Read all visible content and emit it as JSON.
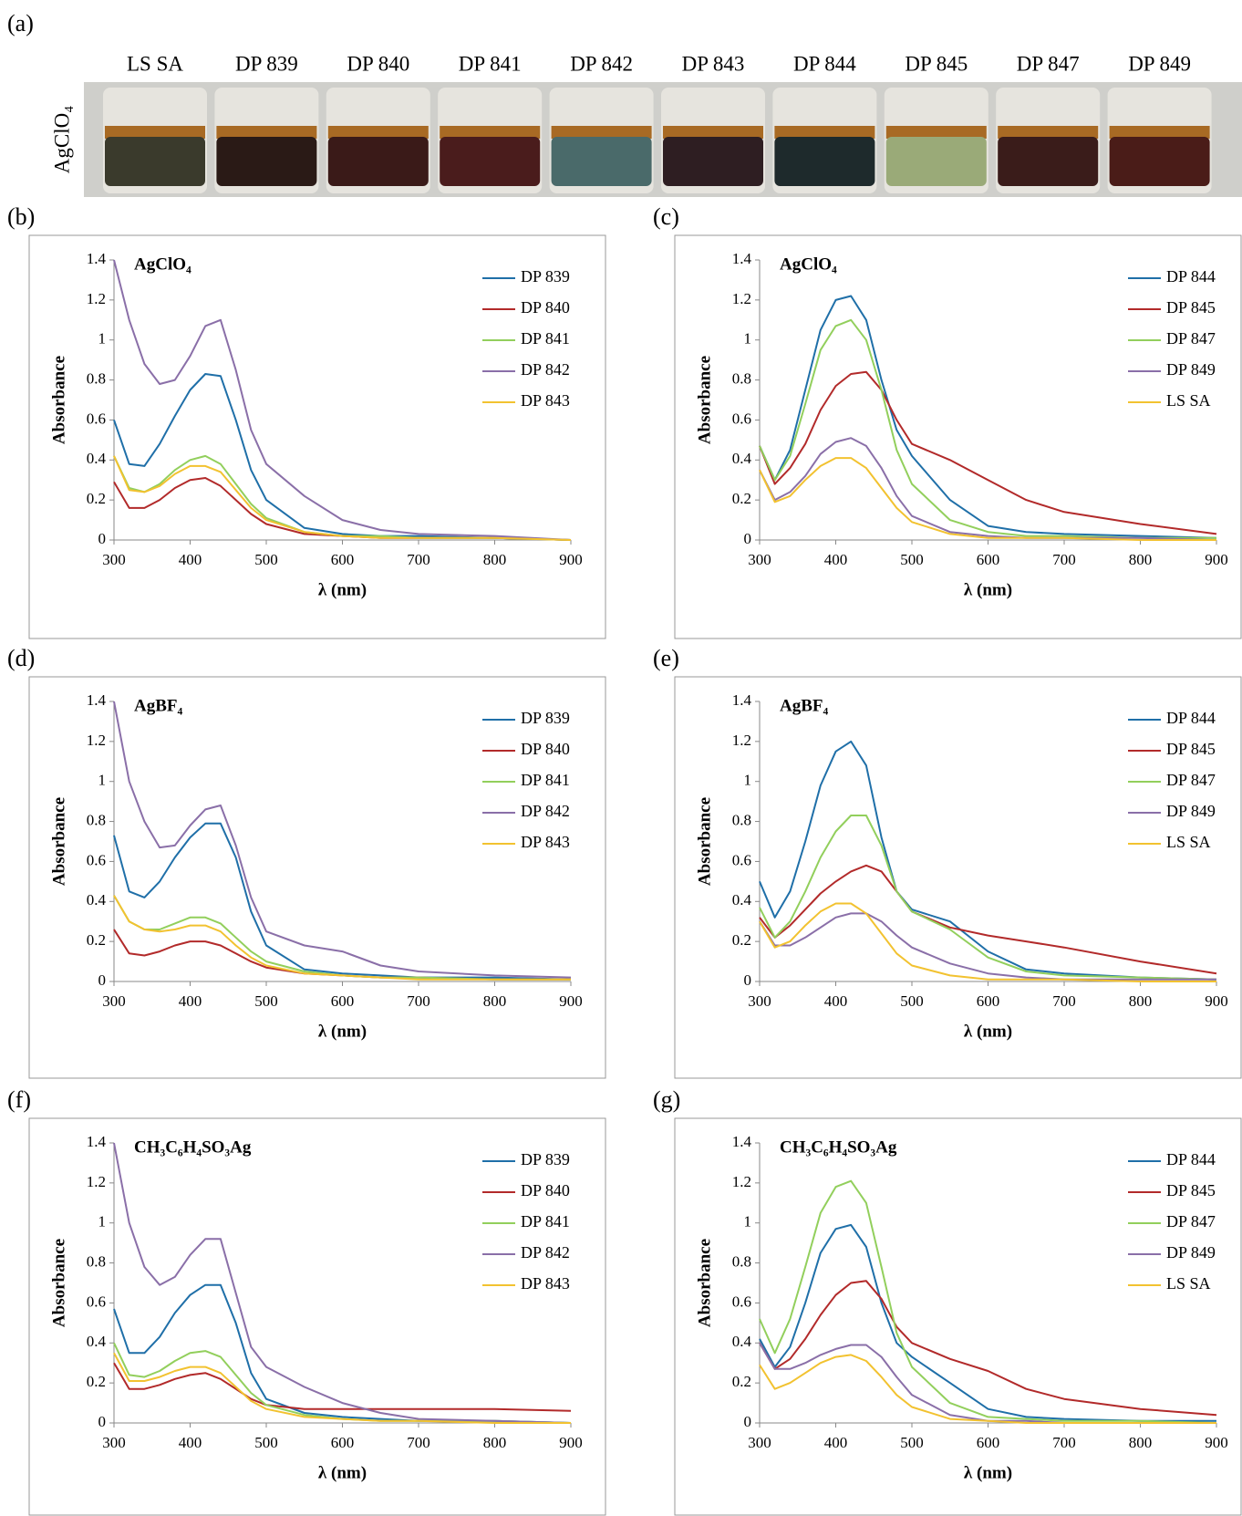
{
  "photo": {
    "label": "(a)",
    "reagent": "AgClO₄",
    "samples": [
      "LS SA",
      "DP 839",
      "DP 840",
      "DP 841",
      "DP 842",
      "DP 843",
      "DP 844",
      "DP 845",
      "DP 847",
      "DP 849"
    ]
  },
  "chart_data": [
    {
      "type": "line",
      "label": "(b)",
      "title": "AgClO₄",
      "xlabel": "λ  (nm)",
      "ylabel": "Absorbance",
      "x": [
        300,
        320,
        340,
        360,
        380,
        400,
        420,
        440,
        460,
        480,
        500,
        550,
        600,
        650,
        700,
        800,
        900
      ],
      "xlim": [
        300,
        900
      ],
      "ylim": [
        0,
        1.4
      ],
      "xticks": [
        300,
        400,
        500,
        600,
        700,
        800,
        900
      ],
      "yticks": [
        0,
        0.2,
        0.4,
        0.6,
        0.8,
        1,
        1.2,
        1.4
      ],
      "series": [
        {
          "name": "DP 839",
          "color": "#1f6fa8",
          "values": [
            0.6,
            0.38,
            0.37,
            0.48,
            0.62,
            0.75,
            0.83,
            0.82,
            0.6,
            0.35,
            0.2,
            0.06,
            0.03,
            0.02,
            0.02,
            0.01,
            0
          ]
        },
        {
          "name": "DP 840",
          "color": "#b22a2a",
          "values": [
            0.29,
            0.16,
            0.16,
            0.2,
            0.26,
            0.3,
            0.31,
            0.27,
            0.2,
            0.13,
            0.08,
            0.03,
            0.02,
            0.01,
            0.01,
            0.01,
            0
          ]
        },
        {
          "name": "DP 841",
          "color": "#92cf5c",
          "values": [
            0.42,
            0.26,
            0.24,
            0.28,
            0.35,
            0.4,
            0.42,
            0.38,
            0.28,
            0.18,
            0.11,
            0.04,
            0.02,
            0.02,
            0.01,
            0.01,
            0
          ]
        },
        {
          "name": "DP 842",
          "color": "#8a6fa8",
          "values": [
            1.4,
            1.1,
            0.88,
            0.78,
            0.8,
            0.92,
            1.07,
            1.1,
            0.85,
            0.55,
            0.38,
            0.22,
            0.1,
            0.05,
            0.03,
            0.02,
            0
          ]
        },
        {
          "name": "DP 843",
          "color": "#f2c230",
          "values": [
            0.42,
            0.25,
            0.24,
            0.27,
            0.33,
            0.37,
            0.37,
            0.34,
            0.25,
            0.16,
            0.1,
            0.04,
            0.02,
            0.01,
            0.01,
            0.01,
            0
          ]
        }
      ]
    },
    {
      "type": "line",
      "label": "(c)",
      "title": "AgClO₄",
      "xlabel": "λ  (nm)",
      "ylabel": "Absorbance",
      "x": [
        300,
        320,
        340,
        360,
        380,
        400,
        420,
        440,
        460,
        480,
        500,
        550,
        600,
        650,
        700,
        800,
        900
      ],
      "xlim": [
        300,
        900
      ],
      "ylim": [
        0,
        1.4
      ],
      "xticks": [
        300,
        400,
        500,
        600,
        700,
        800,
        900
      ],
      "yticks": [
        0,
        0.2,
        0.4,
        0.6,
        0.8,
        1,
        1.2,
        1.4
      ],
      "series": [
        {
          "name": "DP 844",
          "color": "#1f6fa8",
          "values": [
            0.47,
            0.3,
            0.45,
            0.75,
            1.05,
            1.2,
            1.22,
            1.1,
            0.8,
            0.55,
            0.42,
            0.2,
            0.07,
            0.04,
            0.03,
            0.02,
            0.01
          ]
        },
        {
          "name": "DP 845",
          "color": "#b22a2a",
          "values": [
            0.47,
            0.28,
            0.36,
            0.48,
            0.65,
            0.77,
            0.83,
            0.84,
            0.75,
            0.6,
            0.48,
            0.4,
            0.3,
            0.2,
            0.14,
            0.08,
            0.03
          ]
        },
        {
          "name": "DP 847",
          "color": "#92cf5c",
          "values": [
            0.47,
            0.3,
            0.42,
            0.68,
            0.95,
            1.07,
            1.1,
            1.0,
            0.75,
            0.45,
            0.28,
            0.1,
            0.04,
            0.02,
            0.02,
            0.01,
            0.01
          ]
        },
        {
          "name": "DP 849",
          "color": "#8a6fa8",
          "values": [
            0.35,
            0.2,
            0.24,
            0.32,
            0.43,
            0.49,
            0.51,
            0.47,
            0.36,
            0.22,
            0.12,
            0.04,
            0.02,
            0.01,
            0.01,
            0.01,
            0
          ]
        },
        {
          "name": "LS SA",
          "color": "#f2c230",
          "values": [
            0.35,
            0.19,
            0.22,
            0.3,
            0.37,
            0.41,
            0.41,
            0.36,
            0.26,
            0.16,
            0.09,
            0.03,
            0.01,
            0.01,
            0.01,
            0,
            0
          ]
        }
      ]
    },
    {
      "type": "line",
      "label": "(d)",
      "title": "AgBF₄",
      "xlabel": "λ  (nm)",
      "ylabel": "Absorbance",
      "x": [
        300,
        320,
        340,
        360,
        380,
        400,
        420,
        440,
        460,
        480,
        500,
        550,
        600,
        650,
        700,
        800,
        900
      ],
      "xlim": [
        300,
        900
      ],
      "ylim": [
        0,
        1.4
      ],
      "xticks": [
        300,
        400,
        500,
        600,
        700,
        800,
        900
      ],
      "yticks": [
        0,
        0.2,
        0.4,
        0.6,
        0.8,
        1,
        1.2,
        1.4
      ],
      "series": [
        {
          "name": "DP 839",
          "color": "#1f6fa8",
          "values": [
            0.73,
            0.45,
            0.42,
            0.5,
            0.62,
            0.72,
            0.79,
            0.79,
            0.62,
            0.35,
            0.18,
            0.06,
            0.04,
            0.03,
            0.02,
            0.02,
            0.01
          ]
        },
        {
          "name": "DP 840",
          "color": "#b22a2a",
          "values": [
            0.26,
            0.14,
            0.13,
            0.15,
            0.18,
            0.2,
            0.2,
            0.18,
            0.14,
            0.1,
            0.07,
            0.04,
            0.03,
            0.02,
            0.02,
            0.01,
            0.01
          ]
        },
        {
          "name": "DP 841",
          "color": "#92cf5c",
          "values": [
            0.43,
            0.3,
            0.26,
            0.26,
            0.29,
            0.32,
            0.32,
            0.29,
            0.22,
            0.15,
            0.1,
            0.05,
            0.03,
            0.02,
            0.02,
            0.01,
            0.01
          ]
        },
        {
          "name": "DP 842",
          "color": "#8a6fa8",
          "values": [
            1.4,
            1.0,
            0.8,
            0.67,
            0.68,
            0.78,
            0.86,
            0.88,
            0.68,
            0.42,
            0.25,
            0.18,
            0.15,
            0.08,
            0.05,
            0.03,
            0.02
          ]
        },
        {
          "name": "DP 843",
          "color": "#f2c230",
          "values": [
            0.43,
            0.3,
            0.26,
            0.25,
            0.26,
            0.28,
            0.28,
            0.25,
            0.18,
            0.12,
            0.08,
            0.04,
            0.03,
            0.02,
            0.01,
            0.01,
            0.01
          ]
        }
      ]
    },
    {
      "type": "line",
      "label": "(e)",
      "title": "AgBF₄",
      "xlabel": "λ  (nm)",
      "ylabel": "Absorbance",
      "x": [
        300,
        320,
        340,
        360,
        380,
        400,
        420,
        440,
        460,
        480,
        500,
        550,
        600,
        650,
        700,
        800,
        900
      ],
      "xlim": [
        300,
        900
      ],
      "ylim": [
        0,
        1.4
      ],
      "xticks": [
        300,
        400,
        500,
        600,
        700,
        800,
        900
      ],
      "yticks": [
        0,
        0.2,
        0.4,
        0.6,
        0.8,
        1,
        1.2,
        1.4
      ],
      "series": [
        {
          "name": "DP 844",
          "color": "#1f6fa8",
          "values": [
            0.5,
            0.32,
            0.45,
            0.7,
            0.98,
            1.15,
            1.2,
            1.08,
            0.72,
            0.45,
            0.36,
            0.3,
            0.15,
            0.06,
            0.04,
            0.02,
            0.01
          ]
        },
        {
          "name": "DP 845",
          "color": "#b22a2a",
          "values": [
            0.32,
            0.22,
            0.28,
            0.36,
            0.44,
            0.5,
            0.55,
            0.58,
            0.55,
            0.45,
            0.35,
            0.27,
            0.23,
            0.2,
            0.17,
            0.1,
            0.04
          ]
        },
        {
          "name": "DP 847",
          "color": "#92cf5c",
          "values": [
            0.37,
            0.22,
            0.3,
            0.45,
            0.62,
            0.75,
            0.83,
            0.83,
            0.68,
            0.45,
            0.35,
            0.26,
            0.12,
            0.05,
            0.03,
            0.02,
            0.01
          ]
        },
        {
          "name": "DP 849",
          "color": "#8a6fa8",
          "values": [
            0.3,
            0.18,
            0.18,
            0.22,
            0.27,
            0.32,
            0.34,
            0.34,
            0.3,
            0.23,
            0.17,
            0.09,
            0.04,
            0.02,
            0.01,
            0.01,
            0.01
          ]
        },
        {
          "name": "LS SA",
          "color": "#f2c230",
          "values": [
            0.3,
            0.17,
            0.2,
            0.28,
            0.35,
            0.39,
            0.39,
            0.34,
            0.24,
            0.14,
            0.08,
            0.03,
            0.01,
            0.01,
            0.01,
            0,
            0
          ]
        }
      ]
    },
    {
      "type": "line",
      "label": "(f)",
      "title": "CH₃C₆H₄SO₃Ag",
      "xlabel": "λ  (nm)",
      "ylabel": "Absorbance",
      "x": [
        300,
        320,
        340,
        360,
        380,
        400,
        420,
        440,
        460,
        480,
        500,
        550,
        600,
        650,
        700,
        800,
        900
      ],
      "xlim": [
        300,
        900
      ],
      "ylim": [
        0,
        1.4
      ],
      "xticks": [
        300,
        400,
        500,
        600,
        700,
        800,
        900
      ],
      "yticks": [
        0,
        0.2,
        0.4,
        0.6,
        0.8,
        1,
        1.2,
        1.4
      ],
      "series": [
        {
          "name": "DP 839",
          "color": "#1f6fa8",
          "values": [
            0.57,
            0.35,
            0.35,
            0.43,
            0.55,
            0.64,
            0.69,
            0.69,
            0.5,
            0.25,
            0.12,
            0.05,
            0.03,
            0.02,
            0.01,
            0.01,
            0
          ]
        },
        {
          "name": "DP 840",
          "color": "#b22a2a",
          "values": [
            0.3,
            0.17,
            0.17,
            0.19,
            0.22,
            0.24,
            0.25,
            0.22,
            0.17,
            0.12,
            0.09,
            0.07,
            0.07,
            0.07,
            0.07,
            0.07,
            0.06
          ]
        },
        {
          "name": "DP 841",
          "color": "#92cf5c",
          "values": [
            0.4,
            0.24,
            0.23,
            0.26,
            0.31,
            0.35,
            0.36,
            0.33,
            0.24,
            0.15,
            0.09,
            0.04,
            0.02,
            0.01,
            0.01,
            0.01,
            0
          ]
        },
        {
          "name": "DP 842",
          "color": "#8a6fa8",
          "values": [
            1.4,
            1.0,
            0.78,
            0.69,
            0.73,
            0.84,
            0.92,
            0.92,
            0.65,
            0.38,
            0.28,
            0.18,
            0.1,
            0.05,
            0.02,
            0.01,
            0
          ]
        },
        {
          "name": "DP 843",
          "color": "#f2c230",
          "values": [
            0.35,
            0.21,
            0.21,
            0.23,
            0.26,
            0.28,
            0.28,
            0.25,
            0.18,
            0.11,
            0.07,
            0.03,
            0.02,
            0.01,
            0.01,
            0,
            0
          ]
        }
      ]
    },
    {
      "type": "line",
      "label": "(g)",
      "title": "CH₃C₆H₄SO₃Ag",
      "xlabel": "λ  (nm)",
      "ylabel": "Absorbance",
      "x": [
        300,
        320,
        340,
        360,
        380,
        400,
        420,
        440,
        460,
        480,
        500,
        550,
        600,
        650,
        700,
        800,
        900
      ],
      "xlim": [
        300,
        900
      ],
      "ylim": [
        0,
        1.4
      ],
      "xticks": [
        300,
        400,
        500,
        600,
        700,
        800,
        900
      ],
      "yticks": [
        0,
        0.2,
        0.4,
        0.6,
        0.8,
        1,
        1.2,
        1.4
      ],
      "series": [
        {
          "name": "DP 844",
          "color": "#1f6fa8",
          "values": [
            0.42,
            0.28,
            0.38,
            0.6,
            0.85,
            0.97,
            0.99,
            0.88,
            0.6,
            0.4,
            0.33,
            0.2,
            0.07,
            0.03,
            0.02,
            0.01,
            0.01
          ]
        },
        {
          "name": "DP 845",
          "color": "#b22a2a",
          "values": [
            0.4,
            0.27,
            0.32,
            0.42,
            0.54,
            0.64,
            0.7,
            0.71,
            0.62,
            0.48,
            0.4,
            0.32,
            0.26,
            0.17,
            0.12,
            0.07,
            0.04
          ]
        },
        {
          "name": "DP 847",
          "color": "#92cf5c",
          "values": [
            0.52,
            0.35,
            0.52,
            0.78,
            1.05,
            1.18,
            1.21,
            1.1,
            0.78,
            0.45,
            0.28,
            0.1,
            0.03,
            0.02,
            0.01,
            0.01,
            0
          ]
        },
        {
          "name": "DP 849",
          "color": "#8a6fa8",
          "values": [
            0.4,
            0.27,
            0.27,
            0.3,
            0.34,
            0.37,
            0.39,
            0.39,
            0.33,
            0.23,
            0.14,
            0.04,
            0.01,
            0.01,
            0,
            0,
            0
          ]
        },
        {
          "name": "LS SA",
          "color": "#f2c230",
          "values": [
            0.29,
            0.17,
            0.2,
            0.25,
            0.3,
            0.33,
            0.34,
            0.31,
            0.23,
            0.14,
            0.08,
            0.02,
            0.01,
            0,
            0,
            0,
            0
          ]
        }
      ]
    }
  ]
}
